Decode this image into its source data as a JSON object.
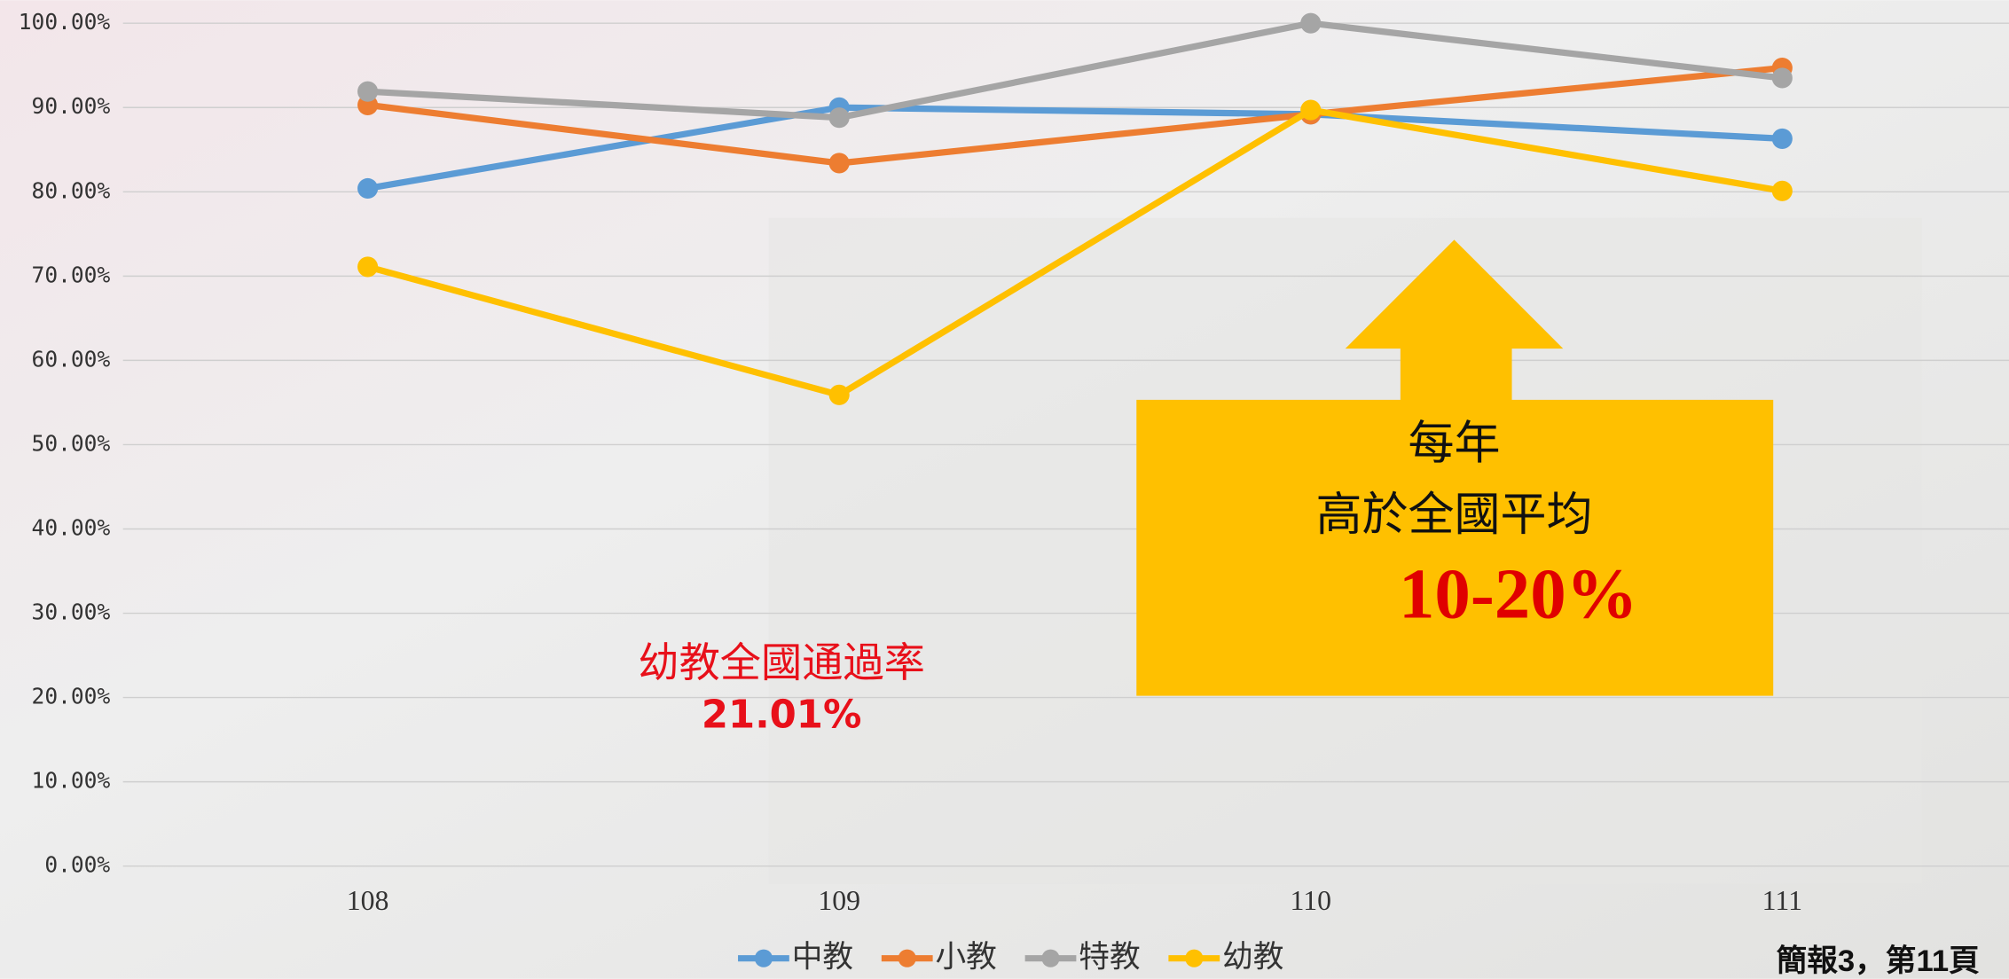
{
  "chart_data": {
    "type": "line",
    "categories": [
      "108",
      "109",
      "110",
      "111"
    ],
    "series": [
      {
        "name": "中教",
        "color": "#5b9bd5",
        "values": [
          80.4,
          90.0,
          89.2,
          86.3
        ]
      },
      {
        "name": "小教",
        "color": "#ed7d31",
        "values": [
          90.3,
          83.4,
          89.2,
          94.7
        ]
      },
      {
        "name": "特教",
        "color": "#a5a5a5",
        "values": [
          91.9,
          88.8,
          100.0,
          93.5
        ]
      },
      {
        "name": "幼教",
        "color": "#ffc000",
        "values": [
          71.1,
          55.9,
          89.7,
          80.1
        ]
      }
    ],
    "ylim": [
      0,
      100
    ],
    "yticks": [
      {
        "value": 0,
        "label": "0.00%"
      },
      {
        "value": 10,
        "label": "10.00%"
      },
      {
        "value": 20,
        "label": "20.00%"
      },
      {
        "value": 30,
        "label": "30.00%"
      },
      {
        "value": 40,
        "label": "40.00%"
      },
      {
        "value": 50,
        "label": "50.00%"
      },
      {
        "value": 60,
        "label": "60.00%"
      },
      {
        "value": 70,
        "label": "70.00%"
      },
      {
        "value": 80,
        "label": "80.00%"
      },
      {
        "value": 90,
        "label": "90.00%"
      },
      {
        "value": 100,
        "label": "100.00%"
      }
    ],
    "grid": true,
    "legend": "bottom",
    "annotations": {
      "national_label": "幼教全國通過率",
      "national_rate": "21.01%",
      "box_line1": "每年",
      "box_line2": "高於全國平均",
      "box_line3": "10-20%"
    },
    "footer": "簡報3，第11頁"
  }
}
